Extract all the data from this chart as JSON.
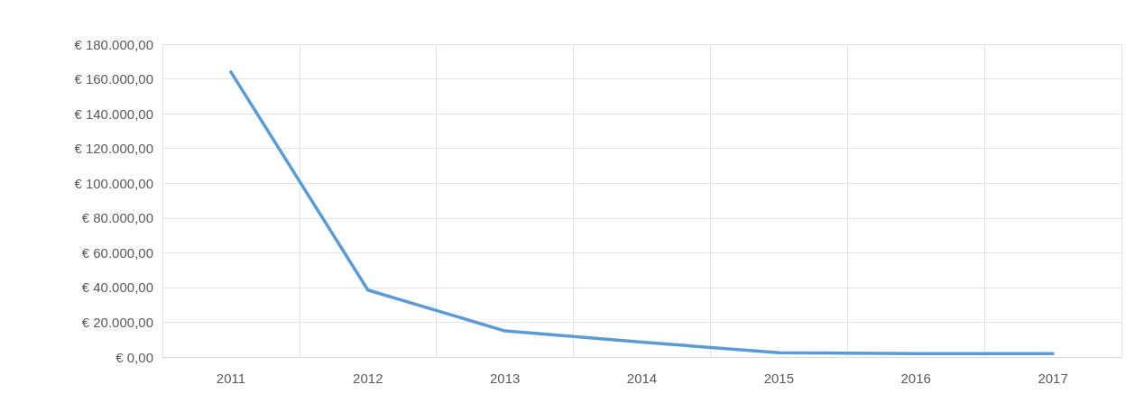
{
  "chart_data": {
    "type": "line",
    "categories": [
      "2011",
      "2012",
      "2013",
      "2014",
      "2015",
      "2016",
      "2017"
    ],
    "series": [
      {
        "color": "#5b9bd5",
        "values": [
          164000,
          38500,
          15000,
          8500,
          2500,
          2000,
          2000
        ]
      }
    ],
    "ylim": [
      0,
      180000
    ],
    "yticks": [
      {
        "value": 0,
        "label": "€ 0,00"
      },
      {
        "value": 20000,
        "label": "€ 20.000,00"
      },
      {
        "value": 40000,
        "label": "€ 40.000,00"
      },
      {
        "value": 60000,
        "label": "€ 60.000,00"
      },
      {
        "value": 80000,
        "label": "€ 80.000,00"
      },
      {
        "value": 100000,
        "label": "€ 100.000,00"
      },
      {
        "value": 120000,
        "label": "€ 120.000,00"
      },
      {
        "value": 140000,
        "label": "€ 140.000,00"
      },
      {
        "value": 160000,
        "label": "€ 160.000,00"
      },
      {
        "value": 180000,
        "label": "€ 180.000,00"
      }
    ],
    "grid": true,
    "marker": "none",
    "line_style": "solid"
  }
}
